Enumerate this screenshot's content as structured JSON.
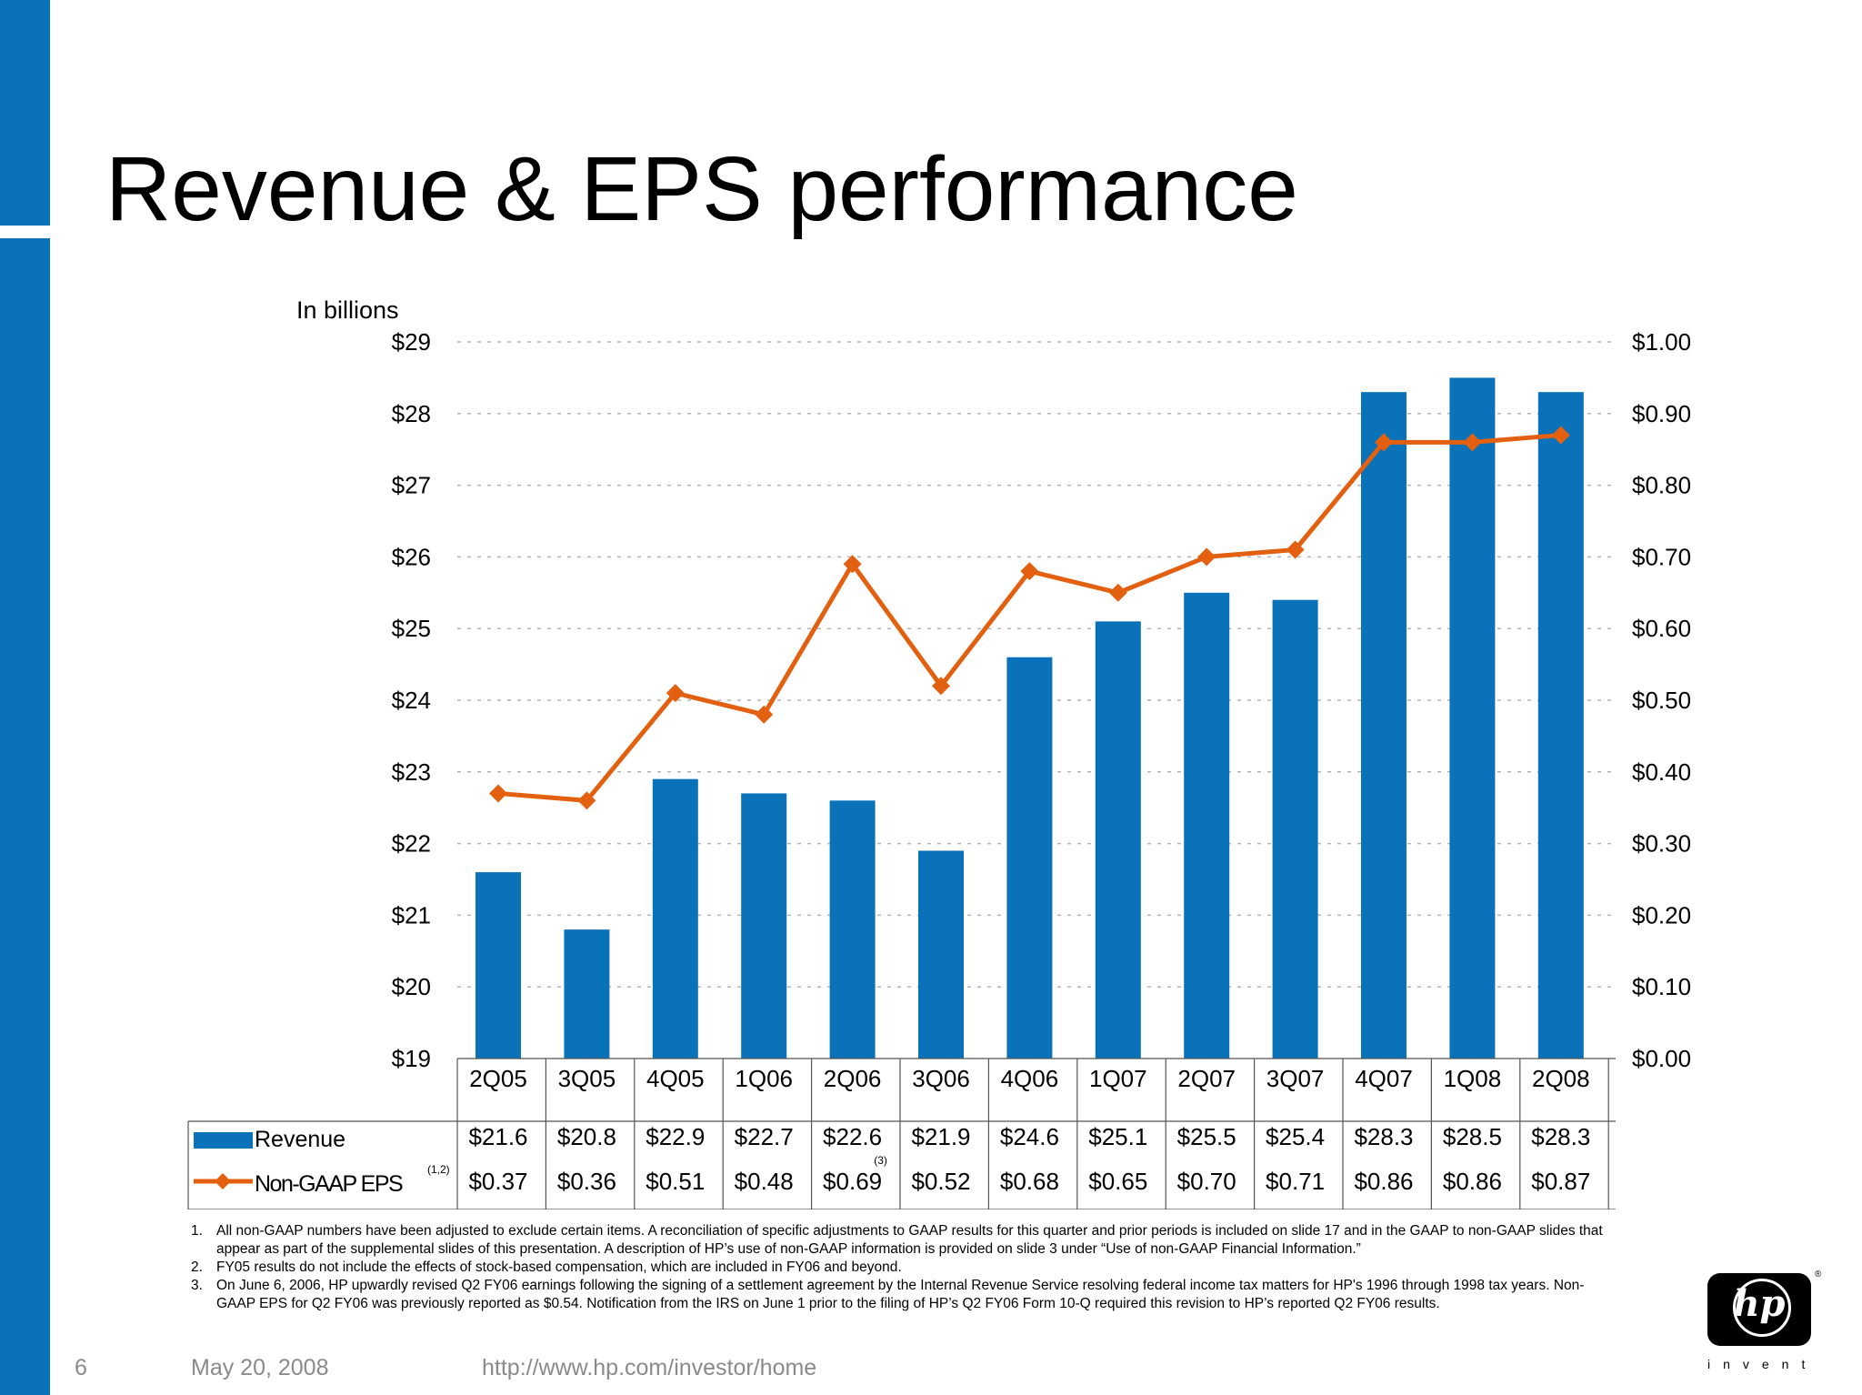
{
  "slide": {
    "title": "Revenue & EPS performance",
    "page_number": "6",
    "date": "May 20, 2008",
    "url": "http://www.hp.com/investor/home",
    "logo_text": "invent",
    "logo_mark": "hp",
    "logo_reg": "®"
  },
  "footnotes": [
    {
      "num": "1.",
      "text": "All non-GAAP numbers have been adjusted to exclude certain items. A reconciliation of specific adjustments to GAAP results for this quarter and prior periods is included on slide 17 and in the GAAP to non-GAAP slides that appear as part of the supplemental slides of this presentation. A description of HP’s use of non-GAAP information is provided on slide 3 under “Use of non-GAAP Financial Information.”"
    },
    {
      "num": "2.",
      "text": "FY05 results do not include the effects of stock-based compensation, which are included in FY06 and beyond."
    },
    {
      "num": "3.",
      "text": "On June 6, 2006, HP upwardly revised Q2 FY06 earnings following the signing of a settlement agreement by the Internal Revenue Service resolving federal income tax matters for HP's 1996 through 1998 tax years. Non-GAAP EPS for Q2 FY06 was previously reported as $0.54. Notification from the IRS on June 1 prior to the filing of HP’s Q2 FY06 Form 10-Q required this revision to HP’s reported Q2 FY06 results."
    }
  ],
  "colors": {
    "bar": "#0a72b8",
    "line": "#e2600f",
    "grid": "#b5b5b5",
    "accent": "#0a72b8"
  },
  "chart_data": {
    "type": "bar",
    "unit_label": "In billions",
    "categories": [
      "2Q05",
      "3Q05",
      "4Q05",
      "1Q06",
      "2Q06",
      "3Q06",
      "4Q06",
      "1Q07",
      "2Q07",
      "3Q07",
      "4Q07",
      "1Q08",
      "2Q08"
    ],
    "left_axis": {
      "min": 19,
      "max": 29,
      "step": 1,
      "ticks": [
        "$19",
        "$20",
        "$21",
        "$22",
        "$23",
        "$24",
        "$25",
        "$26",
        "$27",
        "$28",
        "$29"
      ]
    },
    "right_axis": {
      "min": 0,
      "max": 1.0,
      "step": 0.1,
      "ticks": [
        "$0.00",
        "$0.10",
        "$0.20",
        "$0.30",
        "$0.40",
        "$0.50",
        "$0.60",
        "$0.70",
        "$0.80",
        "$0.90",
        "$1.00"
      ]
    },
    "grid": true,
    "series": [
      {
        "name": "Revenue",
        "type": "bar",
        "axis": "left",
        "values": [
          21.6,
          20.8,
          22.9,
          22.7,
          22.6,
          21.9,
          24.6,
          25.1,
          25.5,
          25.4,
          28.3,
          28.5,
          28.3
        ],
        "labels": [
          "$21.6",
          "$20.8",
          "$22.9",
          "$22.7",
          "$22.6",
          "$21.9",
          "$24.6",
          "$25.1",
          "$25.5",
          "$25.4",
          "$28.3",
          "$28.5",
          "$28.3"
        ]
      },
      {
        "name": "Non-GAAP EPS",
        "name_sup": "(1,2)",
        "type": "line",
        "axis": "right",
        "values": [
          0.37,
          0.36,
          0.51,
          0.48,
          0.69,
          0.52,
          0.68,
          0.65,
          0.7,
          0.71,
          0.86,
          0.86,
          0.87
        ],
        "labels": [
          "$0.37",
          "$0.36",
          "$0.51",
          "$0.48",
          "$0.69",
          "$0.52",
          "$0.68",
          "$0.65",
          "$0.70",
          "$0.71",
          "$0.86",
          "$0.86",
          "$0.87"
        ],
        "label_sup": {
          "index": 4,
          "text": "(3)"
        }
      }
    ]
  }
}
